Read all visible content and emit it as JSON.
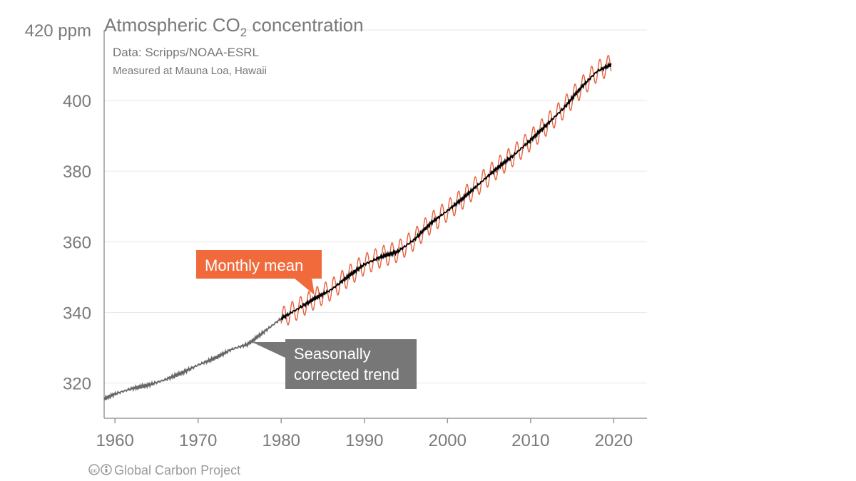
{
  "chart_data": {
    "type": "line",
    "title": "Atmospheric CO",
    "title_subscript": "2",
    "title_suffix": " concentration",
    "subtitle": "Data: Scripps/NOAA-ESRL",
    "subtitle2": "Measured at Mauna Loa, Hawaii",
    "yunit": "420 ppm",
    "ylim": [
      310,
      420
    ],
    "xlim": [
      1958.7,
      2024.0
    ],
    "yticks": [
      320,
      340,
      360,
      380,
      400,
      420
    ],
    "ytick_labels": [
      "320",
      "340",
      "360",
      "380",
      "400",
      "420 ppm"
    ],
    "xticks": [
      1960,
      1970,
      1980,
      1990,
      2000,
      2010,
      2020
    ],
    "xtick_labels": [
      "1960",
      "1970",
      "1980",
      "1990",
      "2000",
      "2010",
      "2020"
    ],
    "grid": true,
    "colors": {
      "trend": "#666666",
      "trend_recent": "#000000",
      "monthly": "#e8603c",
      "callout_monthly": "#f06a3c",
      "callout_trend": "#777777"
    },
    "series": [
      {
        "key": "trend",
        "x": [
          1958.7,
          1960,
          1962,
          1964,
          1966,
          1968,
          1970,
          1972,
          1974,
          1976,
          1978,
          1980,
          1982,
          1984,
          1986,
          1988,
          1990,
          1992,
          1994,
          1996,
          1998,
          2000,
          2002,
          2004,
          2006,
          2008,
          2010,
          2012,
          2014,
          2016,
          2018,
          2019.7
        ],
        "y": [
          315.5,
          316.9,
          318.4,
          319.4,
          320.9,
          322.8,
          325.1,
          327.0,
          329.5,
          331.0,
          334.6,
          338.3,
          341.0,
          343.9,
          346.4,
          350.1,
          353.6,
          355.7,
          357.2,
          360.6,
          365.3,
          368.8,
          372.6,
          376.8,
          380.9,
          384.6,
          388.8,
          393.3,
          397.9,
          403.5,
          408.3,
          410.2
        ]
      }
    ],
    "monthly_mean": {
      "start": 1980.0,
      "end": 2019.7,
      "seasonal_amplitude": 3.0
    },
    "annotations": [
      {
        "key": "monthly",
        "text": "Monthly mean"
      },
      {
        "key": "trend",
        "text_lines": [
          "Seasonally",
          "corrected trend"
        ]
      }
    ]
  },
  "credit": "Global Carbon Project",
  "credit_icons": [
    "cc-icon",
    "by-icon"
  ]
}
